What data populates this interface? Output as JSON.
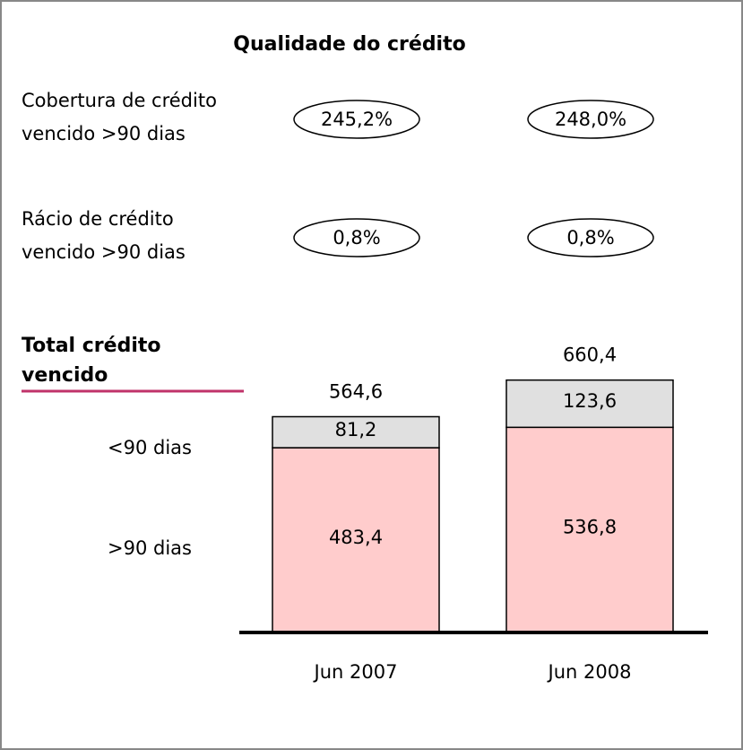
{
  "chart_data": {
    "type": "stacked-bar",
    "title": "Qualidade do crédito",
    "metrics": [
      {
        "label_lines": [
          "Cobertura de crédito",
          "vencido >90 dias"
        ],
        "values": [
          245.2,
          248.0
        ],
        "value_labels": [
          "245,2%",
          "248,0%"
        ]
      },
      {
        "label_lines": [
          "Rácio de crédito",
          "vencido >90 dias"
        ],
        "values": [
          0.8,
          0.8
        ],
        "value_labels": [
          "0,8%",
          "0,8%"
        ]
      }
    ],
    "subtitle_lines": [
      "Total crédito",
      "vencido"
    ],
    "categories": [
      "Jun 2007",
      "Jun 2008"
    ],
    "series": [
      {
        "name": ">90 dias",
        "color": "#ffcccc",
        "values": [
          483.4,
          536.8
        ],
        "value_labels": [
          "483,4",
          "536,8"
        ]
      },
      {
        "name": "<90 dias",
        "color": "#e0e0e0",
        "values": [
          81.2,
          123.6
        ],
        "value_labels": [
          "81,2",
          "123,6"
        ]
      }
    ],
    "totals": [
      564.6,
      660.4
    ],
    "total_labels": [
      "564,6",
      "660,4"
    ]
  }
}
